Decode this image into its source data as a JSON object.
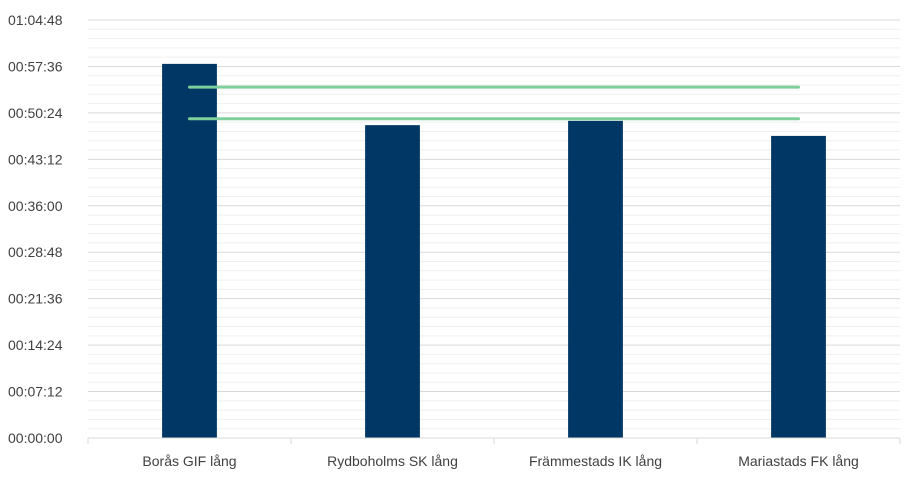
{
  "chart_data": {
    "type": "bar",
    "categories": [
      "Borås GIF lång",
      "Rydboholms SK lång",
      "Främmestads IK lång",
      "Mariastads FK lång"
    ],
    "series": [
      {
        "values": [
          "00:58:00",
          "00:48:30",
          "00:49:10",
          "00:46:50"
        ]
      }
    ],
    "reference_lines": [
      "00:54:24",
      "00:49:30"
    ],
    "y_ticks": [
      "00:00:00",
      "00:07:12",
      "00:14:24",
      "00:21:36",
      "00:28:48",
      "00:36:00",
      "00:43:12",
      "00:50:24",
      "00:57:36",
      "01:04:48"
    ],
    "ylim": [
      "00:00:00",
      "01:04:48"
    ],
    "minor_gridlines": true,
    "colors": {
      "bar": "#003764",
      "reference_line": "#7fcf9b",
      "grid_major": "#d9d9d9",
      "grid_minor": "#efefef",
      "text": "#404040"
    }
  }
}
